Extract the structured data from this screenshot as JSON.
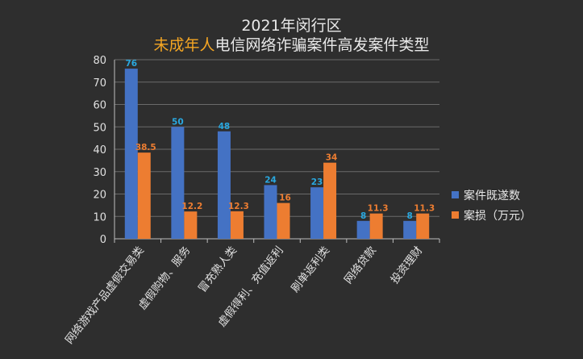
{
  "chart_data": {
    "type": "bar",
    "title_line1": "2021年闵行区",
    "title_accent": "未成年人",
    "title_rest": "电信网络诈骗案件高发案件类型",
    "categories": [
      "网络游戏产品虚假交易类",
      "虚假购物、服务",
      "冒充熟人类",
      "虚假得利、充值返利",
      "刷单返利类",
      "网络贷款",
      "投资理财"
    ],
    "series": [
      {
        "name": "案件既遂数",
        "values": [
          76,
          50,
          48,
          24,
          23,
          8,
          8
        ],
        "value_labels": [
          "76",
          "50",
          "48",
          "24",
          "23",
          "8",
          "8"
        ],
        "color": "#4472c4",
        "label_color": "#29a8e0"
      },
      {
        "name": "案损（万元）",
        "values": [
          38.5,
          12.2,
          12.3,
          16,
          34,
          11.3,
          11.3
        ],
        "value_labels": [
          "38.5",
          "12.2",
          "12.3",
          "16",
          "34",
          "11.3",
          "11.3"
        ],
        "color": "#ed7d31",
        "label_color": "#ed7d31"
      }
    ],
    "yticks": [
      "0",
      "10",
      "20",
      "30",
      "40",
      "50",
      "60",
      "70",
      "80"
    ],
    "ylim": [
      0,
      80
    ],
    "grid": true,
    "legend_position": "right"
  }
}
